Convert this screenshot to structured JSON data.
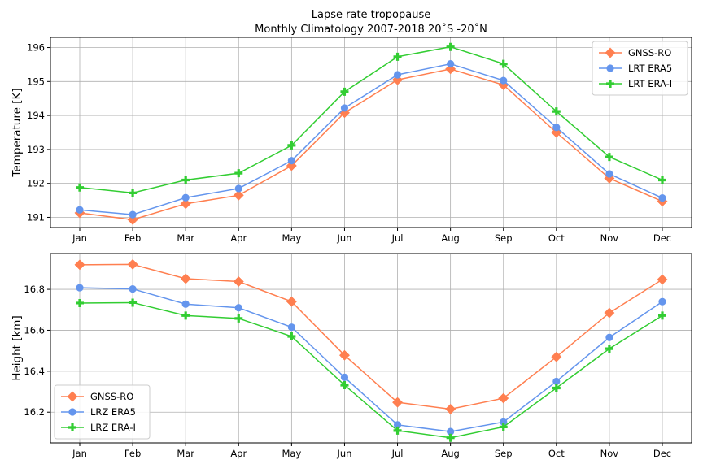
{
  "figure": {
    "title_line1": "Lapse rate tropopause",
    "title_line2": "Monthly Climatology 2007-2018 20˚S -20˚N"
  },
  "chart_data": [
    {
      "type": "line",
      "categories": [
        "Jan",
        "Feb",
        "Mar",
        "Apr",
        "May",
        "Jun",
        "Jul",
        "Aug",
        "Sep",
        "Oct",
        "Nov",
        "Dec"
      ],
      "ylabel": "Temperature [K]",
      "xlabel": "",
      "ylim": [
        190.7,
        196.3
      ],
      "yticks": [
        191,
        192,
        193,
        194,
        195,
        196
      ],
      "grid": true,
      "legend_position": "top-right",
      "series": [
        {
          "name": "GNSS-RO",
          "color": "#FF7F50",
          "marker": "diamond",
          "values": [
            191.13,
            190.93,
            191.4,
            191.65,
            192.52,
            194.08,
            195.05,
            195.37,
            194.9,
            193.5,
            192.15,
            191.47
          ]
        },
        {
          "name": "LRT ERA5",
          "color": "#6495ED",
          "marker": "circle",
          "values": [
            191.22,
            191.08,
            191.58,
            191.85,
            192.67,
            194.22,
            195.2,
            195.52,
            195.03,
            193.65,
            192.28,
            191.57
          ]
        },
        {
          "name": "LRT ERA-I",
          "color": "#32CD32",
          "marker": "plus",
          "values": [
            191.88,
            191.72,
            192.1,
            192.3,
            193.12,
            194.7,
            195.73,
            196.02,
            195.52,
            194.12,
            192.78,
            192.1
          ]
        }
      ]
    },
    {
      "type": "line",
      "categories": [
        "Jan",
        "Feb",
        "Mar",
        "Apr",
        "May",
        "Jun",
        "Jul",
        "Aug",
        "Sep",
        "Oct",
        "Nov",
        "Dec"
      ],
      "ylabel": "Height [km]",
      "xlabel": "",
      "ylim": [
        16.05,
        16.975
      ],
      "yticks": [
        16.2,
        16.4,
        16.6,
        16.8
      ],
      "grid": true,
      "legend_position": "bottom-left",
      "series": [
        {
          "name": "GNSS-RO",
          "color": "#FF7F50",
          "marker": "diamond",
          "values": [
            16.92,
            16.922,
            16.852,
            16.838,
            16.74,
            16.478,
            16.248,
            16.215,
            16.268,
            16.47,
            16.685,
            16.848
          ]
        },
        {
          "name": "LRZ ERA5",
          "color": "#6495ED",
          "marker": "circle",
          "values": [
            16.808,
            16.802,
            16.728,
            16.71,
            16.615,
            16.37,
            16.138,
            16.105,
            16.152,
            16.35,
            16.565,
            16.74
          ]
        },
        {
          "name": "LRZ ERA-I",
          "color": "#32CD32",
          "marker": "plus",
          "values": [
            16.733,
            16.735,
            16.672,
            16.658,
            16.57,
            16.332,
            16.11,
            16.075,
            16.128,
            16.318,
            16.51,
            16.672
          ]
        }
      ]
    }
  ]
}
